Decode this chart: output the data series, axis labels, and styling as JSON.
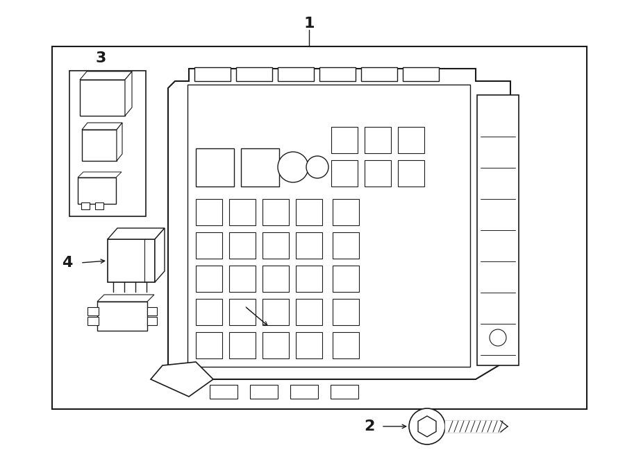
{
  "bg_color": "#ffffff",
  "line_color": "#1a1a1a",
  "fig_width": 9.0,
  "fig_height": 6.62,
  "dpi": 100,
  "title": "1",
  "label2": "2",
  "label3": "3",
  "label4": "4"
}
